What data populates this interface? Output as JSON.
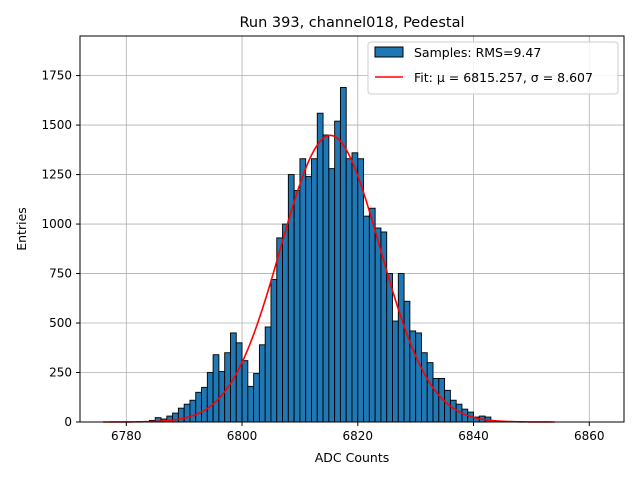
{
  "chart_data": {
    "type": "bar",
    "title": "Run 393, channel018, Pedestal",
    "xlabel": "ADC Counts",
    "ylabel": "Entries",
    "xlim": [
      6772,
      6866
    ],
    "ylim": [
      0,
      1950
    ],
    "xticks": [
      6780,
      6800,
      6820,
      6840,
      6860
    ],
    "yticks": [
      0,
      250,
      500,
      750,
      1000,
      1250,
      1500,
      1750
    ],
    "grid": true,
    "legend_position": "top-right",
    "bin_width": 1,
    "histogram": {
      "name": "Samples: RMS=9.47",
      "bin_starts": [
        6783,
        6784,
        6785,
        6786,
        6787,
        6788,
        6789,
        6790,
        6791,
        6792,
        6793,
        6794,
        6795,
        6796,
        6797,
        6798,
        6799,
        6800,
        6801,
        6802,
        6803,
        6804,
        6805,
        6806,
        6807,
        6808,
        6809,
        6810,
        6811,
        6812,
        6813,
        6814,
        6815,
        6816,
        6817,
        6818,
        6819,
        6820,
        6821,
        6822,
        6823,
        6824,
        6825,
        6826,
        6827,
        6828,
        6829,
        6830,
        6831,
        6832,
        6833,
        6834,
        6835,
        6836,
        6837,
        6838,
        6839,
        6840,
        6841,
        6842
      ],
      "counts": [
        3,
        8,
        22,
        15,
        30,
        45,
        70,
        90,
        110,
        150,
        175,
        250,
        340,
        255,
        350,
        450,
        400,
        310,
        180,
        245,
        390,
        480,
        720,
        930,
        1000,
        1250,
        1170,
        1330,
        1240,
        1330,
        1560,
        1450,
        1280,
        1520,
        1690,
        1330,
        1360,
        1330,
        1040,
        1080,
        980,
        960,
        750,
        510,
        750,
        610,
        460,
        450,
        350,
        300,
        220,
        220,
        160,
        110,
        90,
        65,
        50,
        25,
        30,
        25
      ],
      "color": "#1f77b4",
      "edgecolor": "#000000"
    },
    "fit": {
      "name": "Fit: μ = 6815.257, σ = 8.607",
      "mu": 6815.257,
      "sigma": 8.607,
      "amplitude": 1448,
      "x_range": [
        6776,
        6854
      ],
      "color": "#ff0000"
    }
  }
}
